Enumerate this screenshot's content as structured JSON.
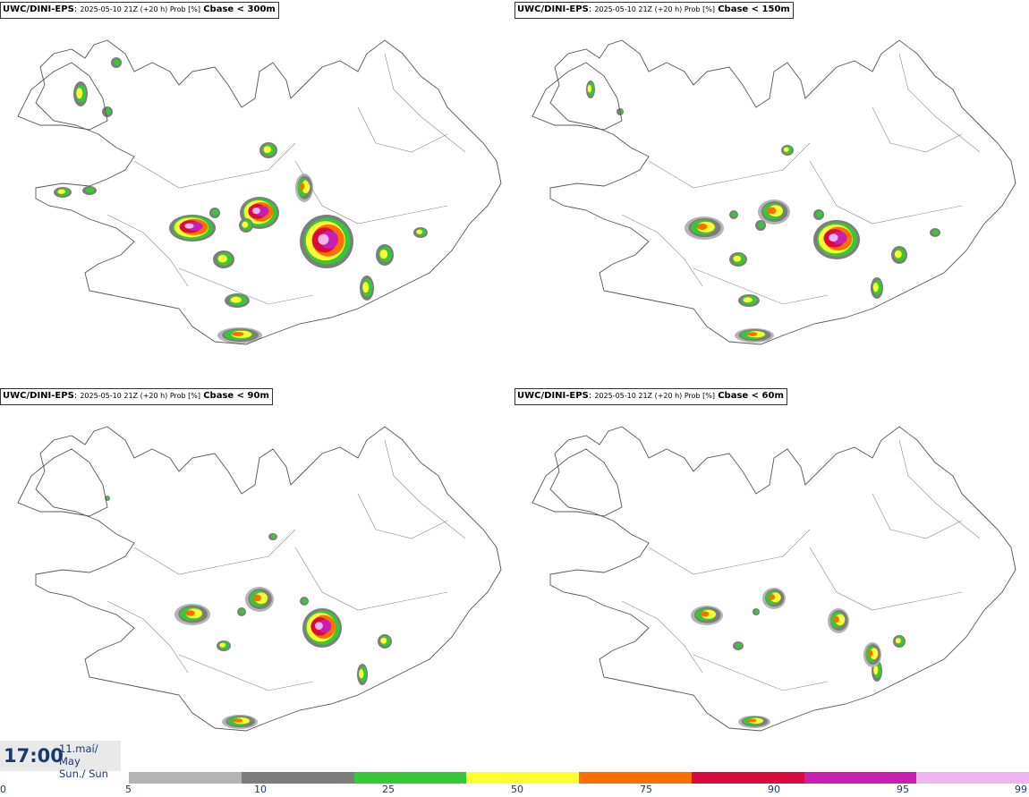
{
  "panels": [
    {
      "source": "UWC/DINI-EPS",
      "info": "2025-05-10 21Z (+20 h) Prob [%]",
      "variable": "Cbase < 300m",
      "level": 4
    },
    {
      "source": "UWC/DINI-EPS",
      "info": "2025-05-10 21Z (+20 h) Prob [%]",
      "variable": "Cbase < 150m",
      "level": 3
    },
    {
      "source": "UWC/DINI-EPS",
      "info": "2025-05-10 21Z (+20 h) Prob [%]",
      "variable": "Cbase < 90m",
      "level": 2
    },
    {
      "source": "UWC/DINI-EPS",
      "info": "2025-05-10 21Z (+20 h) Prob [%]",
      "variable": "Cbase < 60m",
      "level": 1
    }
  ],
  "valid_time": {
    "time": "17:00",
    "date": "11.maí/ May",
    "day": "Sun./ Sun"
  },
  "legend": {
    "ticks": [
      "0",
      "5",
      "10",
      "25",
      "50",
      "75",
      "90",
      "95",
      "99"
    ],
    "colors": [
      "#b4b4b4",
      "#7d7d7d",
      "#37c837",
      "#ffff32",
      "#ff6e00",
      "#dc0a3c",
      "#c81eb4",
      "#f0b4f0"
    ]
  }
}
